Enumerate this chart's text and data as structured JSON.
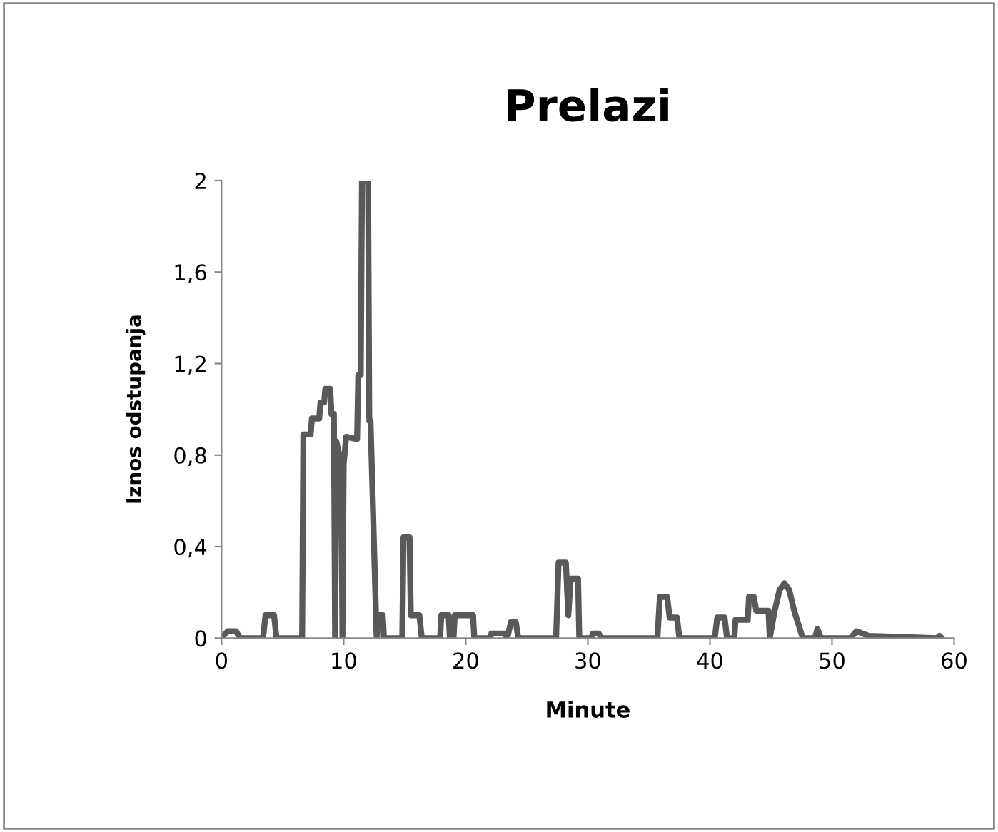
{
  "chart_data": {
    "type": "line",
    "title": "Prelazi",
    "xlabel": "Minute",
    "ylabel": "Iznos odstupanja",
    "xlim": [
      0,
      60
    ],
    "xticks": [
      0,
      10,
      20,
      30,
      40,
      50,
      60
    ],
    "ylim": [
      0,
      2
    ],
    "yticks": [
      0,
      {
        "value": 0.4,
        "label": "0,4"
      },
      {
        "value": 0.8,
        "label": "0,8"
      },
      {
        "value": 1.2,
        "label": "1,2"
      },
      {
        "value": 1.6,
        "label": "1,6"
      },
      2
    ],
    "grid": false,
    "legend": false,
    "marker": "none",
    "line_style": "solid",
    "series": [
      {
        "color": "#595959",
        "x": [
          0,
          0.5,
          1.2,
          1.5,
          3.4,
          3.6,
          4.3,
          4.5,
          6.6,
          6.7,
          7.3,
          7.4,
          8.0,
          8.1,
          8.4,
          8.5,
          8.9,
          9.0,
          9.2,
          9.3,
          9.4,
          9.8,
          9.9,
          10.0,
          10.2,
          11.1,
          11.2,
          11.4,
          11.5,
          12.0,
          12.1,
          12.2,
          12.7,
          12.8,
          13.2,
          13.3,
          14.8,
          14.9,
          15.4,
          15.5,
          16.2,
          16.4,
          17.9,
          18.0,
          18.6,
          18.7,
          19.0,
          19.1,
          20.6,
          20.7,
          22.0,
          22.1,
          23.2,
          23.4,
          23.7,
          24.1,
          24.3,
          27.4,
          27.6,
          28.2,
          28.4,
          28.6,
          29.2,
          29.3,
          30.3,
          30.4,
          30.9,
          31.1,
          35.7,
          35.9,
          36.5,
          36.7,
          37.3,
          37.5,
          40.4,
          40.6,
          41.2,
          41.4,
          42.0,
          42.1,
          43.1,
          43.2,
          43.6,
          43.8,
          44.8,
          44.9,
          45.3,
          45.7,
          46.1,
          46.5,
          46.9,
          47.6,
          48.6,
          48.8,
          49.1,
          51.5,
          52.0,
          53.0,
          58.6,
          58.8,
          59.0
        ],
        "values": [
          0,
          0.03,
          0.03,
          0,
          0,
          0.1,
          0.1,
          0,
          0,
          0.89,
          0.89,
          0.96,
          0.96,
          1.03,
          1.03,
          1.09,
          1.09,
          0.98,
          0.98,
          0,
          0.86,
          0.76,
          0,
          0.76,
          0.88,
          0.87,
          1.15,
          1.15,
          2.0,
          2.0,
          0.95,
          0.95,
          0,
          0.1,
          0.1,
          0,
          0,
          0.44,
          0.44,
          0.1,
          0.1,
          0,
          0,
          0.1,
          0.1,
          0,
          0,
          0.1,
          0.1,
          0,
          0,
          0.02,
          0.02,
          0,
          0.07,
          0.07,
          0,
          0,
          0.33,
          0.33,
          0.1,
          0.26,
          0.26,
          0,
          0,
          0.02,
          0.02,
          0,
          0,
          0.18,
          0.18,
          0.09,
          0.09,
          0,
          0,
          0.09,
          0.09,
          0,
          0,
          0.08,
          0.08,
          0.18,
          0.18,
          0.12,
          0.12,
          0,
          0.12,
          0.21,
          0.24,
          0.21,
          0.12,
          0,
          0,
          0.04,
          0,
          0,
          0.03,
          0.01,
          0,
          0.01,
          0
        ]
      }
    ]
  }
}
